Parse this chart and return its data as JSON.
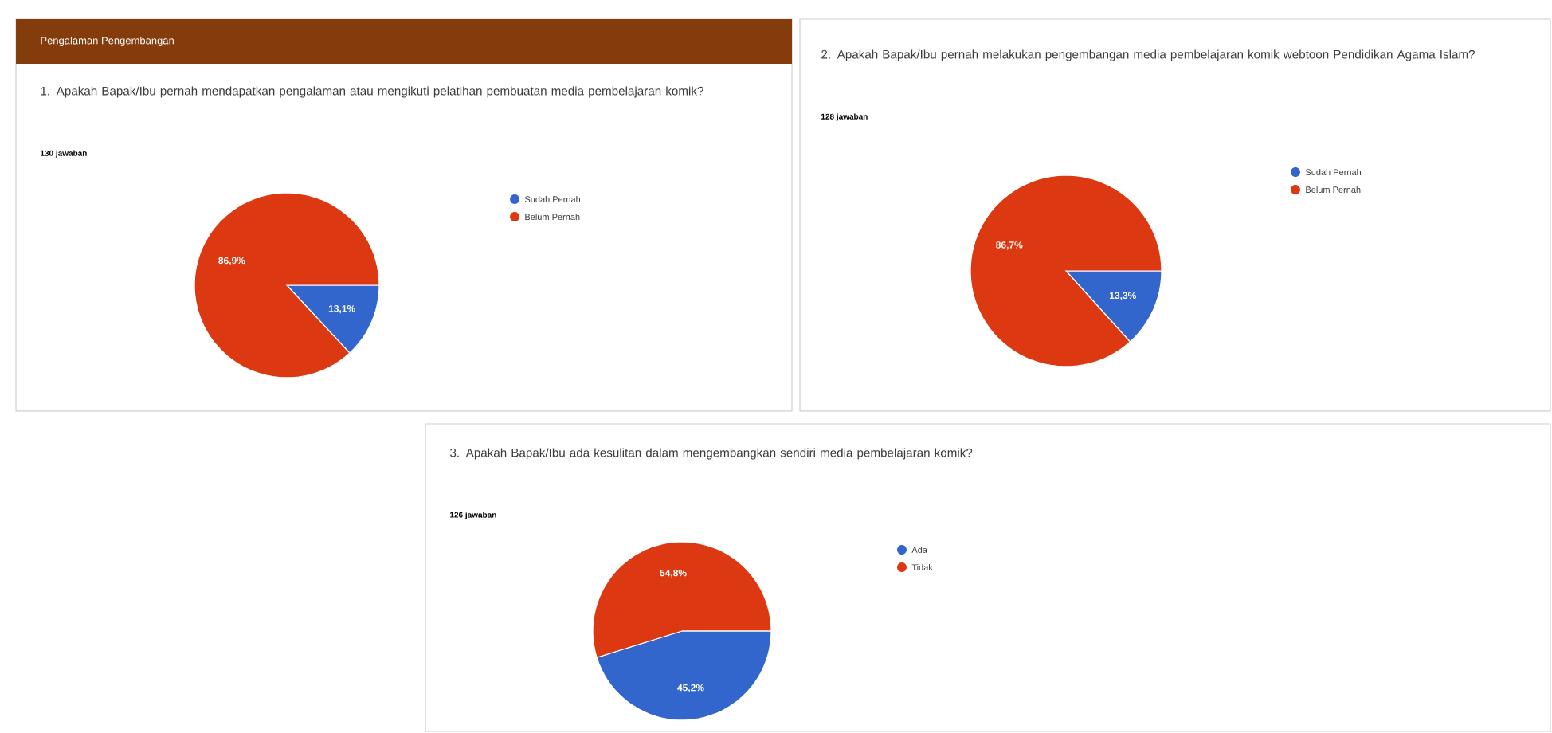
{
  "chart_data": [
    {
      "type": "pie",
      "title": "Pengalaman Pengembangan",
      "subtitle": "1. Apakah Bapak/Ibu pernah mendapatkan pengalaman atau mengikuti pelatihan pembuatan media pembelajaran komik?",
      "annotations": [
        "130 jawaban"
      ],
      "categories": [
        "Sudah Pernah",
        "Belum Pernah"
      ],
      "values": [
        13.1,
        86.9
      ],
      "colors": [
        "#3366cc",
        "#dc3912"
      ],
      "value_labels": [
        "13,1%",
        "86,9%"
      ],
      "legend": "right"
    },
    {
      "type": "pie",
      "title": "2. Apakah Bapak/Ibu pernah melakukan pengembangan media pembelajaran komik webtoon Pendidikan Agama Islam?",
      "annotations": [
        "128 jawaban"
      ],
      "categories": [
        "Sudah Pernah",
        "Belum Pernah"
      ],
      "values": [
        13.3,
        86.7
      ],
      "colors": [
        "#3366cc",
        "#dc3912"
      ],
      "value_labels": [
        "13,3%",
        "86,7%"
      ],
      "legend": "right"
    },
    {
      "type": "pie",
      "title": "3. Apakah Bapak/Ibu ada kesulitan dalam mengembangkan sendiri media pembelajaran komik?",
      "annotations": [
        "126 jawaban"
      ],
      "categories": [
        "Ada",
        "Tidak"
      ],
      "values": [
        45.2,
        54.8
      ],
      "colors": [
        "#3366cc",
        "#dc3912"
      ],
      "value_labels": [
        "45,2%",
        "54,8%"
      ],
      "legend": "right"
    }
  ]
}
